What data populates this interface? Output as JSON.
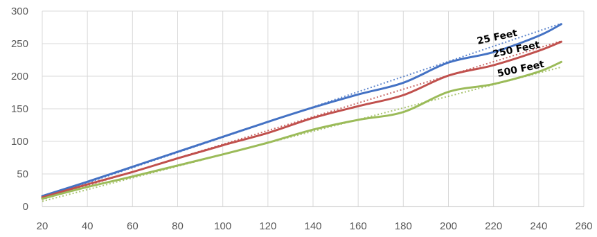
{
  "chart_data": {
    "type": "line",
    "title": "",
    "xlabel": "",
    "ylabel": "",
    "xlim": [
      20,
      260
    ],
    "ylim": [
      0,
      300
    ],
    "x_ticks": [
      20,
      40,
      60,
      80,
      100,
      120,
      140,
      160,
      180,
      200,
      220,
      240,
      260
    ],
    "y_ticks": [
      0,
      50,
      100,
      150,
      200,
      250,
      300
    ],
    "grid": true,
    "legend": "none",
    "series": [
      {
        "name": "25 Feet",
        "color": "#4472c4",
        "x": [
          20,
          40,
          60,
          80,
          100,
          120,
          140,
          160,
          180,
          200,
          220,
          240,
          250
        ],
        "y": [
          16,
          38,
          61,
          84,
          107,
          130,
          152,
          172,
          190,
          221,
          237,
          262,
          280
        ],
        "trendline": {
          "color": "#4472c4",
          "x": [
            20,
            250
          ],
          "y": [
            13,
            281
          ]
        }
      },
      {
        "name": "250 Feet",
        "color": "#c0504d",
        "x": [
          20,
          40,
          60,
          80,
          100,
          120,
          140,
          160,
          180,
          200,
          220,
          240,
          250
        ],
        "y": [
          14,
          34,
          53,
          74,
          94,
          113,
          136,
          154,
          171,
          201,
          217,
          239,
          253
        ],
        "trendline": {
          "color": "#c0504d",
          "x": [
            20,
            250
          ],
          "y": [
            11,
            254
          ]
        }
      },
      {
        "name": "500 Feet",
        "color": "#9bbb59",
        "x": [
          20,
          40,
          60,
          80,
          100,
          120,
          140,
          160,
          180,
          200,
          220,
          240,
          250
        ],
        "y": [
          12,
          30,
          46,
          63,
          80,
          98,
          118,
          133,
          145,
          176,
          188,
          207,
          222
        ],
        "trendline": {
          "color": "#9bbb59",
          "x": [
            20,
            250
          ],
          "y": [
            8,
            214
          ]
        }
      }
    ],
    "annotations": [
      {
        "text": "25 Feet",
        "x": 213,
        "y": 249,
        "rotate": -12
      },
      {
        "text": "250 Feet",
        "x": 220,
        "y": 229,
        "rotate": -12
      },
      {
        "text": "500 Feet",
        "x": 222,
        "y": 199,
        "rotate": -12
      }
    ]
  }
}
